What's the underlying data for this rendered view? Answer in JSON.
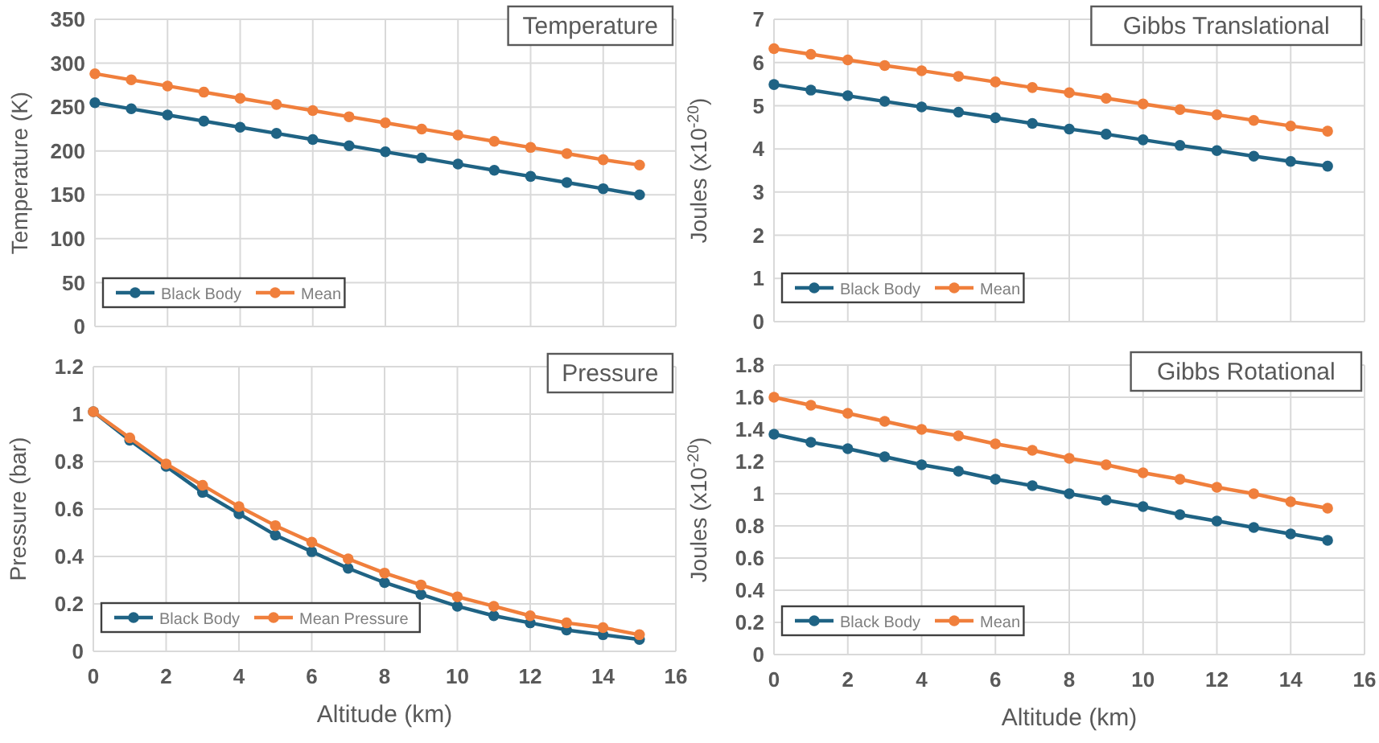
{
  "chart_data": [
    {
      "type": "line",
      "title": "Temperature",
      "ylabel": "Temperature (K)",
      "x": [
        0,
        1,
        2,
        3,
        4,
        5,
        6,
        7,
        8,
        9,
        10,
        11,
        12,
        13,
        14,
        15
      ],
      "xlim": [
        0,
        16
      ],
      "xticks": [
        0,
        2,
        4,
        6,
        8,
        10,
        12,
        14,
        16
      ],
      "ylim": [
        0,
        350
      ],
      "yticks": [
        0,
        50,
        100,
        150,
        200,
        250,
        300,
        350
      ],
      "tick_labels": "y",
      "grid": true,
      "legend": "bottom left",
      "marker": "circle",
      "series": [
        {
          "name": "Black Body",
          "color": "#1f6384",
          "values": [
            255,
            248,
            241,
            234,
            227,
            220,
            213,
            206,
            199,
            192,
            185,
            178,
            171,
            164,
            157,
            150
          ]
        },
        {
          "name": "Mean",
          "color": "#f07f3c",
          "values": [
            288,
            281,
            274,
            267,
            260,
            253,
            246,
            239,
            232,
            225,
            218,
            211,
            204,
            197,
            190,
            184
          ]
        }
      ]
    },
    {
      "type": "line",
      "title": "Gibbs Translational",
      "ylabel": "Joules (x10$^{-20}$)",
      "x": [
        0,
        1,
        2,
        3,
        4,
        5,
        6,
        7,
        8,
        9,
        10,
        11,
        12,
        13,
        14,
        15
      ],
      "xlim": [
        0,
        16
      ],
      "xticks": [
        0,
        2,
        4,
        6,
        8,
        10,
        12,
        14,
        16
      ],
      "ylim": [
        0,
        7
      ],
      "yticks": [
        0,
        1,
        2,
        3,
        4,
        5,
        6,
        7
      ],
      "tick_labels": "y",
      "grid": true,
      "legend": "bottom left",
      "marker": "circle",
      "series": [
        {
          "name": "Black Body",
          "color": "#1f6384",
          "values": [
            5.49,
            5.36,
            5.23,
            5.1,
            4.97,
            4.85,
            4.72,
            4.59,
            4.46,
            4.34,
            4.21,
            4.08,
            3.96,
            3.83,
            3.71,
            3.6
          ]
        },
        {
          "name": "Mean",
          "color": "#f07f3c",
          "values": [
            6.32,
            6.19,
            6.06,
            5.93,
            5.81,
            5.68,
            5.55,
            5.42,
            5.3,
            5.17,
            5.04,
            4.91,
            4.79,
            4.66,
            4.53,
            4.41
          ]
        }
      ]
    },
    {
      "type": "line",
      "title": "Pressure",
      "xlabel": "Altitude (km)",
      "ylabel": "Pressure (bar)",
      "x": [
        0,
        1,
        2,
        3,
        4,
        5,
        6,
        7,
        8,
        9,
        10,
        11,
        12,
        13,
        14,
        15
      ],
      "xlim": [
        0,
        16
      ],
      "xticks": [
        0,
        2,
        4,
        6,
        8,
        10,
        12,
        14,
        16
      ],
      "ylim": [
        0,
        1.2
      ],
      "yticks": [
        0,
        0.2,
        0.4,
        0.6,
        0.8,
        1,
        1.2
      ],
      "grid": true,
      "legend": "bottom left",
      "marker": "circle",
      "series": [
        {
          "name": "Black Body",
          "color": "#1f6384",
          "values": [
            1.01,
            0.89,
            0.78,
            0.67,
            0.58,
            0.49,
            0.42,
            0.35,
            0.29,
            0.24,
            0.19,
            0.15,
            0.12,
            0.09,
            0.07,
            0.05
          ]
        },
        {
          "name": "Mean Pressure",
          "color": "#f07f3c",
          "values": [
            1.01,
            0.9,
            0.79,
            0.7,
            0.61,
            0.53,
            0.46,
            0.39,
            0.33,
            0.28,
            0.23,
            0.19,
            0.15,
            0.12,
            0.1,
            0.07
          ]
        }
      ]
    },
    {
      "type": "line",
      "title": "Gibbs Rotational",
      "xlabel": "Altitude (km)",
      "ylabel": "Joules (x10$^{-20}$)",
      "x": [
        0,
        1,
        2,
        3,
        4,
        5,
        6,
        7,
        8,
        9,
        10,
        11,
        12,
        13,
        14,
        15
      ],
      "xlim": [
        0,
        16
      ],
      "xticks": [
        0,
        2,
        4,
        6,
        8,
        10,
        12,
        14,
        16
      ],
      "ylim": [
        0,
        1.8
      ],
      "yticks": [
        0,
        0.2,
        0.4,
        0.6,
        0.8,
        1,
        1.2,
        1.4,
        1.6,
        1.8
      ],
      "grid": true,
      "legend": "bottom left",
      "marker": "circle",
      "series": [
        {
          "name": "Black Body",
          "color": "#1f6384",
          "values": [
            1.37,
            1.32,
            1.28,
            1.23,
            1.18,
            1.14,
            1.09,
            1.05,
            1.0,
            0.96,
            0.92,
            0.87,
            0.83,
            0.79,
            0.75,
            0.71
          ]
        },
        {
          "name": "Mean",
          "color": "#f07f3c",
          "values": [
            1.6,
            1.55,
            1.5,
            1.45,
            1.4,
            1.36,
            1.31,
            1.27,
            1.22,
            1.18,
            1.13,
            1.09,
            1.04,
            1.0,
            0.95,
            0.91
          ]
        }
      ]
    }
  ]
}
